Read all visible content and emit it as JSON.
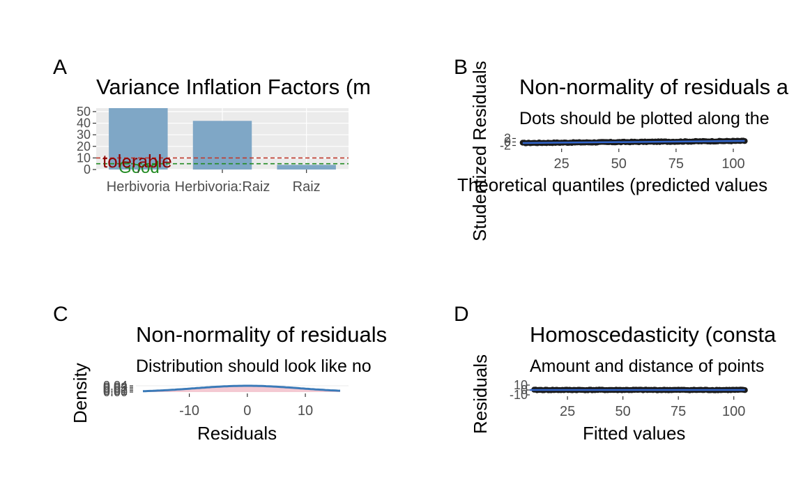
{
  "panels": {
    "A": {
      "tag": "A",
      "title": "Variance Inflation Factors (m",
      "y_ticks": [
        "0",
        "10",
        "20",
        "30",
        "40",
        "50"
      ],
      "threshold_labels": {
        "tolerable": "tolerable",
        "good": "Good"
      },
      "colors": {
        "bar": "#7fa7c6",
        "tolerable": "#8b0000",
        "good": "#228b22",
        "panel_bg": "#ebebeb"
      }
    },
    "B": {
      "tag": "B",
      "title": "Non-normality of residuals a",
      "subtitle": "Dots should be plotted along the",
      "ylabel": "Studentized Residuals",
      "xlabel": "Theoretical quantiles (predicted values",
      "x_ticks": [
        "25",
        "50",
        "75",
        "100"
      ],
      "y_ticks": [
        "-2",
        "0",
        "2"
      ],
      "colors": {
        "points": "#1a1a1a",
        "line": "#3366cc"
      }
    },
    "C": {
      "tag": "C",
      "title": "Non-normality of residuals",
      "subtitle": "Distribution should look like no",
      "ylabel": "Density",
      "xlabel": "Residuals",
      "x_ticks": [
        "-10",
        "0",
        "10"
      ],
      "y_ticks": [
        "0.00",
        "0.01",
        "0.02",
        "0.03",
        "0.04"
      ],
      "colors": {
        "curve": "#3b7ab8",
        "fill": "#f4c9d2"
      }
    },
    "D": {
      "tag": "D",
      "title": "Homoscedasticity (consta",
      "subtitle": "Amount and distance of points",
      "ylabel": "Residuals",
      "xlabel": "Fitted values",
      "x_ticks": [
        "25",
        "50",
        "75",
        "100"
      ],
      "y_ticks": [
        "-10",
        "0",
        "10"
      ],
      "colors": {
        "points": "#1a1a1a",
        "line": "#3366cc"
      }
    }
  },
  "chart_data": [
    {
      "type": "bar",
      "categories": [
        "Herbivoria",
        "Herbivoria:Raiz",
        "Raiz"
      ],
      "values": [
        53,
        42,
        4
      ],
      "ylim": [
        0,
        53
      ],
      "thresholds": [
        {
          "label": "tolerable",
          "value": 10
        },
        {
          "label": "Good",
          "value": 5
        }
      ],
      "grid": true
    },
    {
      "type": "scatter",
      "x_range": [
        5,
        107
      ],
      "y_range": [
        -3,
        3
      ],
      "reference_line": {
        "from": [
          8,
          -0.6
        ],
        "to": [
          105,
          0.6
        ]
      },
      "points_x_range": [
        8,
        105
      ]
    },
    {
      "type": "area",
      "x_range": [
        -18,
        16
      ],
      "density_peak": 0.04,
      "peak_at": 0
    },
    {
      "type": "scatter",
      "x_range": [
        8,
        107
      ],
      "y_range": [
        -10,
        10
      ],
      "reference_line": {
        "from": [
          8,
          0
        ],
        "to": [
          105,
          0
        ]
      },
      "points_x_range": [
        10,
        105
      ]
    }
  ]
}
